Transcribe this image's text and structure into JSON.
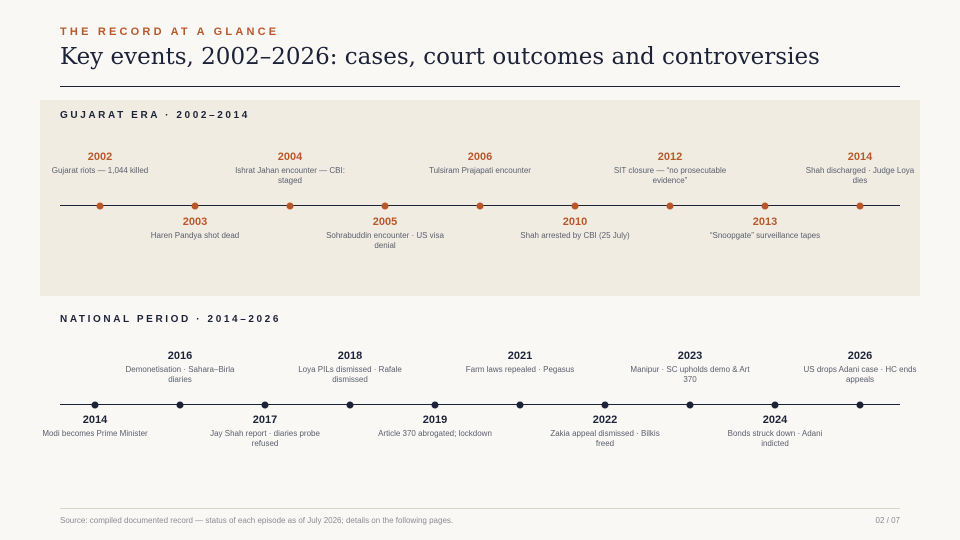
{
  "kicker": "THE RECORD AT A GLANCE",
  "title": "Key events, 2002–2026: cases, court outcomes and controversies",
  "colors": {
    "gujarat_accent": "#b8572a",
    "national_accent": "#1c2238",
    "band": "#f1ece2"
  },
  "gujarat": {
    "label": "GUJARAT ERA · 2002–2014",
    "events": [
      {
        "year": "2002",
        "desc": "Gujarat riots — 1,044 killed"
      },
      {
        "year": "2003",
        "desc": "Haren Pandya shot dead"
      },
      {
        "year": "2004",
        "desc": "Ishrat Jahan encounter — CBI: staged"
      },
      {
        "year": "2005",
        "desc": "Sohrabuddin encounter · US visa denial"
      },
      {
        "year": "2006",
        "desc": "Tulsiram Prajapati encounter"
      },
      {
        "year": "2010",
        "desc": "Shah arrested by CBI (25 July)"
      },
      {
        "year": "2012",
        "desc": "SIT closure — “no prosecutable evidence”"
      },
      {
        "year": "2013",
        "desc": "“Snoopgate” surveillance tapes"
      },
      {
        "year": "2014",
        "desc": "Shah discharged · Judge Loya dies"
      }
    ]
  },
  "national": {
    "label": "NATIONAL PERIOD · 2014–2026",
    "events": [
      {
        "year": "2014",
        "desc": "Modi becomes Prime Minister"
      },
      {
        "year": "2016",
        "desc": "Demonetisation · Sahara–Birla diaries"
      },
      {
        "year": "2017",
        "desc": "Jay Shah report · diaries probe refused"
      },
      {
        "year": "2018",
        "desc": "Loya PILs dismissed · Rafale dismissed"
      },
      {
        "year": "2019",
        "desc": "Article 370 abrogated; lockdown"
      },
      {
        "year": "2021",
        "desc": "Farm laws repealed · Pegasus"
      },
      {
        "year": "2022",
        "desc": "Zakia appeal dismissed · Bilkis freed"
      },
      {
        "year": "2023",
        "desc": "Manipur · SC upholds demo & Art 370"
      },
      {
        "year": "2024",
        "desc": "Bonds struck down · Adani indicted"
      },
      {
        "year": "2026",
        "desc": "US drops Adani case · HC ends appeals"
      }
    ]
  },
  "footer": {
    "source": "Source: compiled documented record — status of each episode as of July 2026; details on the following pages.",
    "page": "02 / 07"
  }
}
